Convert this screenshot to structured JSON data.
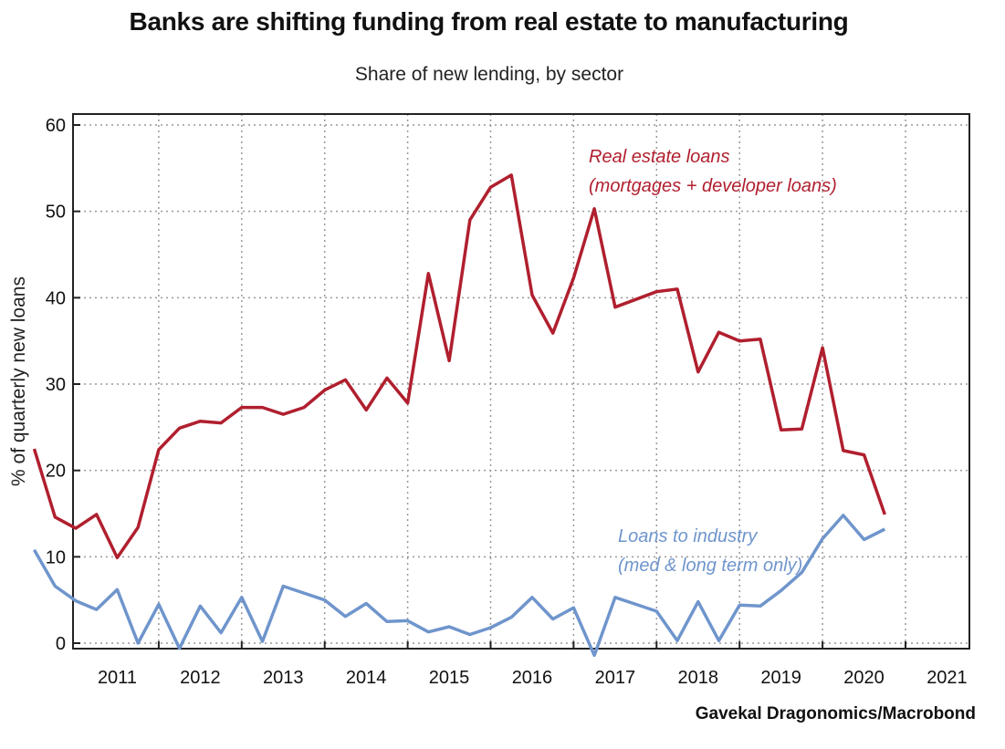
{
  "chart_data": {
    "type": "line",
    "title": "Banks are shifting funding from real estate to manufacturing",
    "subtitle": "Share of new lending, by sector",
    "ylabel": "% of quarterly new loans",
    "xlabel": "",
    "ylim": [
      0,
      60
    ],
    "yticks": [
      "0",
      "10",
      "20",
      "30",
      "40",
      "50",
      "60"
    ],
    "xticks": [
      "2011",
      "2012",
      "2013",
      "2014",
      "2015",
      "2016",
      "2017",
      "2018",
      "2019",
      "2020",
      "2021"
    ],
    "grid": true,
    "source": "Gavekal Dragonomics/Macrobond",
    "x_start": "2010Q3",
    "series": [
      {
        "name": "Real estate loans",
        "annotation": [
          "Real estate loans",
          "(mortgages + developer loans)"
        ],
        "color": "#b01f2e",
        "values": [
          22.5,
          14.6,
          13.3,
          14.9,
          9.9,
          13.4,
          22.4,
          24.9,
          25.7,
          25.5,
          27.3,
          27.3,
          26.5,
          27.3,
          29.3,
          30.5,
          27.0,
          30.7,
          27.8,
          42.8,
          32.7,
          49.0,
          52.8,
          54.2,
          40.3,
          35.9,
          42.3,
          50.3,
          38.9,
          39.8,
          40.7,
          41.0,
          31.4,
          36.0,
          35.0,
          35.2,
          24.7,
          24.8,
          34.2,
          22.3,
          21.8,
          14.9
        ]
      },
      {
        "name": "Loans to industry",
        "annotation": [
          "Loans to industry",
          "(med & long term only)"
        ],
        "color": "#6f95cc",
        "values": [
          10.8,
          6.6,
          4.9,
          3.9,
          6.2,
          0.0,
          4.5,
          -0.6,
          4.3,
          1.2,
          5.3,
          0.2,
          6.6,
          5.8,
          5.0,
          3.1,
          4.6,
          2.5,
          2.6,
          1.3,
          1.9,
          1.0,
          1.8,
          3.0,
          5.3,
          2.8,
          4.1,
          -1.4,
          5.3,
          4.5,
          3.7,
          0.3,
          4.8,
          0.3,
          4.4,
          4.3,
          6.1,
          8.2,
          12.1,
          14.8,
          12.0,
          13.2
        ]
      }
    ]
  }
}
